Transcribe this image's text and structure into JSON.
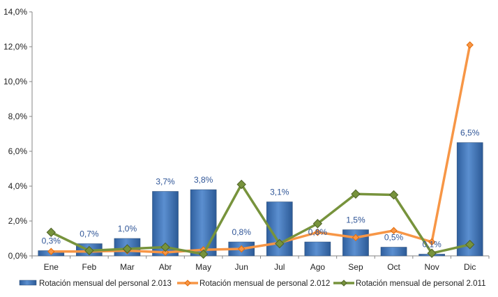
{
  "chart_data": {
    "type": "bar",
    "categories": [
      "Ene",
      "Feb",
      "Mar",
      "Abr",
      "May",
      "Jun",
      "Jul",
      "Ago",
      "Sep",
      "Oct",
      "Nov",
      "Dic"
    ],
    "y_ticks": [
      "0,0%",
      "2,0%",
      "4,0%",
      "6,0%",
      "8,0%",
      "10,0%",
      "12,0%",
      "14,0%"
    ],
    "ylim": [
      0,
      14
    ],
    "grid": false,
    "legend_position": "bottom",
    "series": [
      {
        "name": "Rotación mensual del personal 2.013",
        "type": "bar",
        "color": "#4a7ebb",
        "values": [
          0.3,
          0.7,
          1.0,
          3.7,
          3.8,
          0.8,
          3.1,
          0.8,
          1.5,
          0.5,
          0.1,
          6.5
        ],
        "labels": [
          "0,3%",
          "0,7%",
          "1,0%",
          "3,7%",
          "3,8%",
          "0,8%",
          "3,1%",
          "0,8%",
          "1,5%",
          "0,5%",
          "0,1%",
          "6,5%"
        ]
      },
      {
        "name": "Rotación mensual de personal 2.012",
        "type": "line",
        "color": "#f79646",
        "values": [
          0.25,
          0.25,
          0.3,
          0.2,
          0.35,
          0.4,
          0.75,
          1.35,
          1.05,
          1.45,
          0.8,
          12.1
        ]
      },
      {
        "name": "Rotación mensual de personal 2.011",
        "type": "line",
        "color": "#77933c",
        "values": [
          1.35,
          0.3,
          0.4,
          0.5,
          0.1,
          4.1,
          0.7,
          1.85,
          3.55,
          3.5,
          0.15,
          0.65
        ]
      }
    ]
  }
}
